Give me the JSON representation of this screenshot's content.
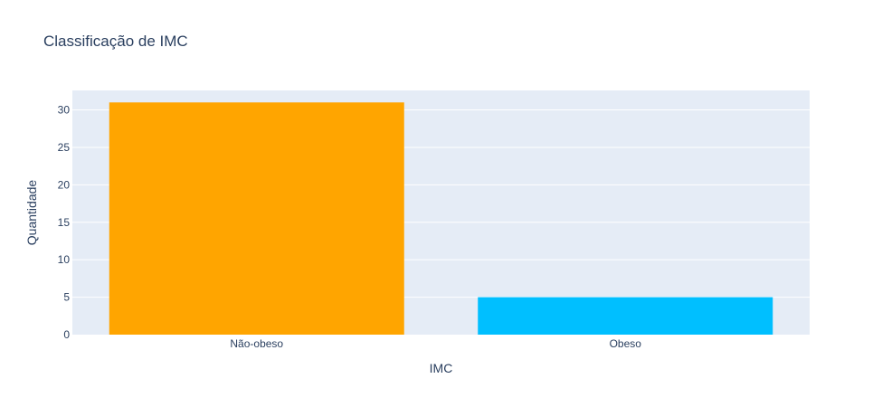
{
  "chart_data": {
    "type": "bar",
    "title": "Classificação de IMC",
    "xlabel": "IMC",
    "ylabel": "Quantidade",
    "categories": [
      "Não-obeso",
      "Obeso"
    ],
    "values": [
      31,
      5
    ],
    "colors": [
      "#FFA500",
      "#00BFFF"
    ],
    "ylim": [
      0,
      32.6
    ],
    "yticks": [
      0,
      5,
      10,
      15,
      20,
      25,
      30
    ],
    "grid": true,
    "plot_background": "#E5ECF6",
    "text_color": "#2a3f5f"
  }
}
